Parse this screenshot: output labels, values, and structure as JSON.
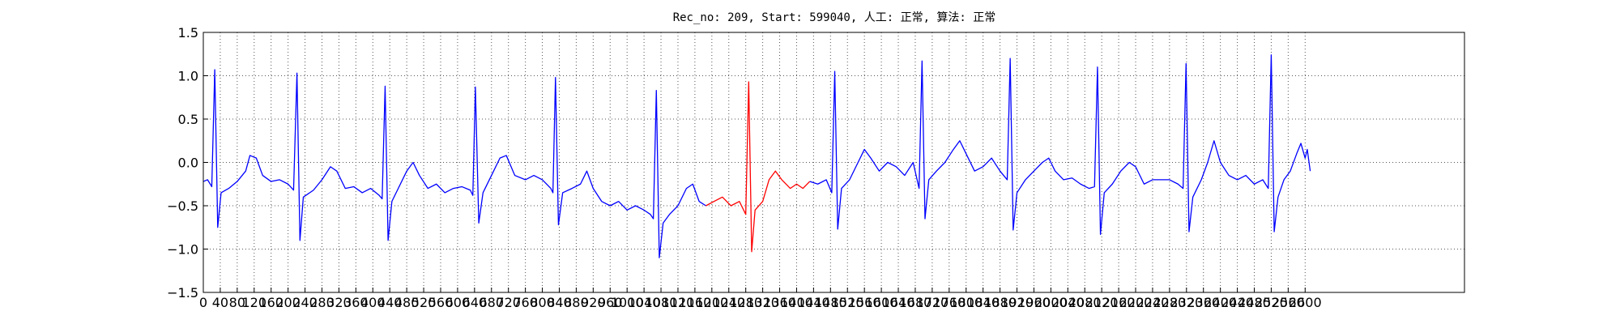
{
  "chart_data": {
    "type": "line",
    "title": "Rec_no: 209, Start: 599040, 人工: 正常, 算法: 正常",
    "xlim": [
      0,
      2976
    ],
    "ylim": [
      -1.5,
      1.5
    ],
    "grid": true,
    "xticks": [
      0,
      40,
      80,
      120,
      160,
      200,
      240,
      280,
      320,
      360,
      400,
      440,
      480,
      520,
      560,
      600,
      640,
      680,
      720,
      760,
      800,
      840,
      880,
      920,
      960,
      1000,
      1040,
      1080,
      1120,
      1160,
      1200,
      1240,
      1280,
      1320,
      1360,
      1400,
      1440,
      1480,
      1520,
      1560,
      1600,
      1640,
      1680,
      1720,
      1760,
      1800,
      1840,
      1880,
      1920,
      1960,
      2000,
      2040,
      2080,
      2120,
      2160,
      2200,
      2240,
      2280,
      2320,
      2360,
      2400,
      2440,
      2480,
      2520,
      2560,
      2600
    ],
    "yticks": [
      {
        "value": -1.5,
        "label": "−1.5"
      },
      {
        "value": -1.0,
        "label": "−1.0"
      },
      {
        "value": -0.5,
        "label": "−0.5"
      },
      {
        "value": 0,
        "label": "0.0"
      },
      {
        "value": 0.5,
        "label": "0.5"
      },
      {
        "value": 1.0,
        "label": "1.0"
      },
      {
        "value": 1.5,
        "label": "1.5"
      }
    ],
    "series": [
      {
        "color": "#0000ff",
        "x": [
          0,
          10,
          20,
          27,
          34,
          42,
          60,
          80,
          100,
          110,
          125,
          140,
          160,
          180,
          200,
          213,
          221,
          228,
          236,
          260,
          280,
          300,
          315,
          335,
          355,
          375,
          395,
          415,
          422,
          429,
          436,
          445,
          460,
          480,
          495,
          510,
          530,
          550,
          570,
          590,
          610,
          630,
          636,
          642,
          650,
          660,
          680,
          700,
          715,
          735,
          760,
          780,
          800,
          820,
          825,
          831,
          838,
          848,
          870,
          890,
          905,
          920,
          940,
          960,
          980,
          1000,
          1020,
          1040,
          1055,
          1062,
          1069,
          1076,
          1085,
          1100,
          1120,
          1140,
          1155,
          1170,
          1186
        ],
        "values": [
          -0.22,
          -0.2,
          -0.28,
          1.07,
          -0.75,
          -0.35,
          -0.3,
          -0.22,
          -0.1,
          0.08,
          0.05,
          -0.15,
          -0.22,
          -0.2,
          -0.25,
          -0.32,
          1.03,
          -0.9,
          -0.4,
          -0.32,
          -0.2,
          -0.05,
          -0.1,
          -0.3,
          -0.28,
          -0.35,
          -0.3,
          -0.38,
          -0.42,
          0.88,
          -0.9,
          -0.45,
          -0.3,
          -0.1,
          0.0,
          -0.15,
          -0.3,
          -0.25,
          -0.35,
          -0.3,
          -0.28,
          -0.32,
          -0.38,
          0.87,
          -0.7,
          -0.35,
          -0.15,
          0.05,
          0.08,
          -0.15,
          -0.2,
          -0.15,
          -0.2,
          -0.3,
          -0.35,
          0.98,
          -0.72,
          -0.35,
          -0.3,
          -0.25,
          -0.1,
          -0.3,
          -0.45,
          -0.5,
          -0.45,
          -0.55,
          -0.5,
          -0.55,
          -0.6,
          -0.65,
          0.83,
          -1.1,
          -0.7,
          -0.6,
          -0.5,
          -0.3,
          -0.25,
          -0.45,
          -0.5
        ]
      },
      {
        "color": "#ff0000",
        "x": [
          1186,
          1205,
          1225,
          1245,
          1265,
          1280,
          1287,
          1294,
          1302,
          1320,
          1335,
          1350,
          1365,
          1385,
          1400,
          1415,
          1431
        ],
        "values": [
          -0.5,
          -0.45,
          -0.4,
          -0.5,
          -0.45,
          -0.6,
          0.93,
          -1.03,
          -0.55,
          -0.45,
          -0.2,
          -0.1,
          -0.2,
          -0.3,
          -0.25,
          -0.3,
          -0.22
        ]
      },
      {
        "color": "#0000ff",
        "x": [
          1431,
          1450,
          1470,
          1483,
          1490,
          1497,
          1506,
          1525,
          1545,
          1560,
          1575,
          1595,
          1615,
          1635,
          1655,
          1675,
          1689,
          1696,
          1703,
          1712,
          1730,
          1750,
          1770,
          1785,
          1800,
          1820,
          1840,
          1860,
          1880,
          1897,
          1904,
          1911,
          1920,
          1940,
          1960,
          1980,
          1995,
          2010,
          2030,
          2050,
          2070,
          2090,
          2103,
          2110,
          2117,
          2126,
          2145,
          2165,
          2185,
          2200,
          2220,
          2240,
          2260,
          2280,
          2300,
          2312,
          2319,
          2326,
          2335,
          2355,
          2370,
          2385,
          2400,
          2420,
          2440,
          2460,
          2480,
          2500,
          2513,
          2520,
          2527,
          2536,
          2550,
          2565,
          2580,
          2590,
          2600,
          2605,
          2612
        ],
        "values": [
          -0.22,
          -0.25,
          -0.2,
          -0.35,
          1.05,
          -0.77,
          -0.3,
          -0.2,
          0.0,
          0.15,
          0.05,
          -0.1,
          0.0,
          -0.05,
          -0.15,
          0.0,
          -0.3,
          1.17,
          -0.65,
          -0.2,
          -0.1,
          0.0,
          0.15,
          0.25,
          0.1,
          -0.1,
          -0.05,
          0.05,
          -0.1,
          -0.2,
          1.2,
          -0.78,
          -0.35,
          -0.2,
          -0.1,
          0.0,
          0.05,
          -0.1,
          -0.2,
          -0.18,
          -0.25,
          -0.3,
          -0.28,
          1.1,
          -0.83,
          -0.35,
          -0.25,
          -0.1,
          0.0,
          -0.05,
          -0.25,
          -0.2,
          -0.2,
          -0.2,
          -0.25,
          -0.3,
          1.14,
          -0.8,
          -0.4,
          -0.2,
          0.0,
          0.25,
          0.0,
          -0.15,
          -0.2,
          -0.15,
          -0.25,
          -0.2,
          -0.3,
          1.24,
          -0.8,
          -0.4,
          -0.2,
          -0.1,
          0.1,
          0.22,
          0.05,
          0.15,
          -0.1
        ]
      }
    ]
  }
}
